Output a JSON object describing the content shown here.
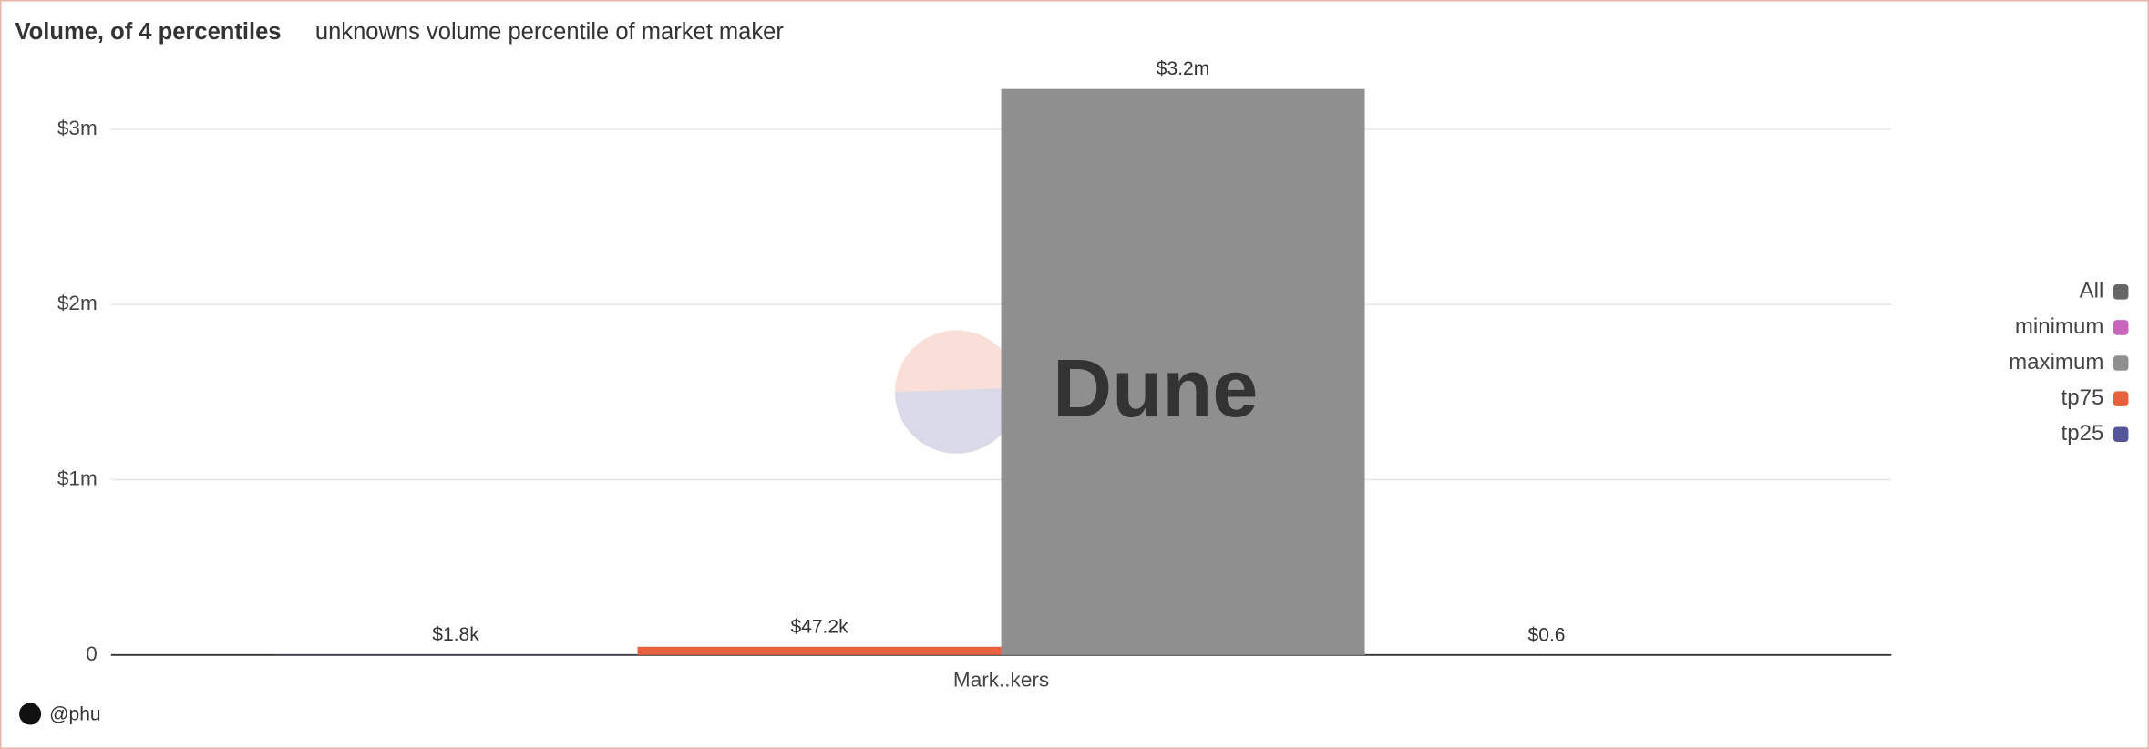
{
  "chart_data": {
    "type": "bar",
    "title": "Volume, of 4 percentiles",
    "subtitle": "unknowns volume percentile of market maker",
    "categories": [
      "Mark..kers"
    ],
    "series": [
      {
        "name": "tp25",
        "color": "#55559a",
        "values": [
          1800
        ],
        "value_labels": [
          "$1.8k"
        ]
      },
      {
        "name": "tp75",
        "color": "#e8613c",
        "values": [
          47200
        ],
        "value_labels": [
          "$47.2k"
        ]
      },
      {
        "name": "maximum",
        "color": "#8f8f8f",
        "values": [
          3230000
        ],
        "value_labels": [
          "$3.2m"
        ]
      },
      {
        "name": "minimum",
        "color": "#c965b9",
        "values": [
          0.6
        ],
        "value_labels": [
          "$0.6"
        ]
      }
    ],
    "legend_all": {
      "name": "All",
      "color": "#666666"
    },
    "ylim": [
      0,
      3300000
    ],
    "yticks": [
      0,
      {
        "value": 1000000,
        "label": "$1m"
      },
      {
        "value": 2000000,
        "label": "$2m"
      },
      {
        "value": 3000000,
        "label": "$3m"
      }
    ],
    "grid": true,
    "legend": "right",
    "watermark": "Dune",
    "footer": "@phu"
  }
}
